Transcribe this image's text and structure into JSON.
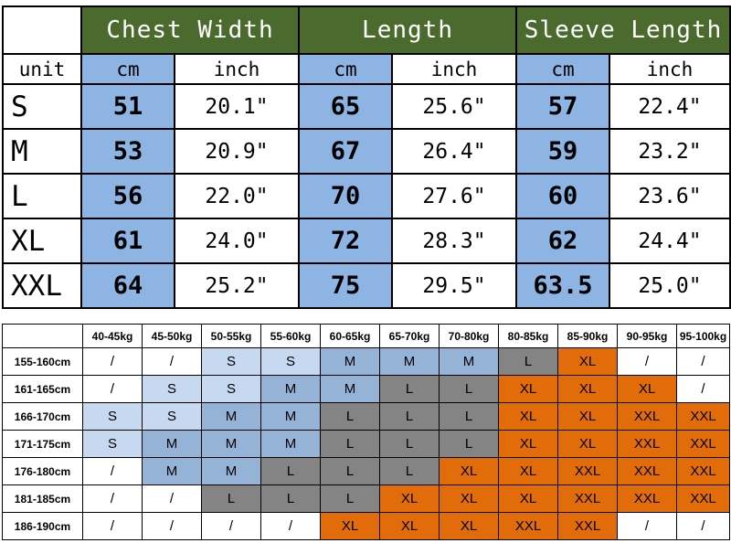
{
  "colors": {
    "header_green": "#4a6b2d",
    "cm_blue": "#8db4e2",
    "cell_S": "#c6d9f1",
    "cell_M": "#95b3d7",
    "cell_L": "#848484",
    "cell_XL": "#e26b0a",
    "cell_XXL": "#e26b0a",
    "cell_none": "#ffffff"
  },
  "chart_data": [
    {
      "type": "table",
      "name": "garment-size-measurements",
      "column_groups": [
        "Chest Width",
        "Length",
        "Sleeve Length"
      ],
      "unit_label": "unit",
      "sub_columns": [
        "cm",
        "inch",
        "cm",
        "inch",
        "cm",
        "inch"
      ],
      "rows": [
        {
          "size": "S",
          "values": [
            "51",
            "20.1\"",
            "65",
            "25.6\"",
            "57",
            "22.4\""
          ]
        },
        {
          "size": "M",
          "values": [
            "53",
            "20.9\"",
            "67",
            "26.4\"",
            "59",
            "23.2\""
          ]
        },
        {
          "size": "L",
          "values": [
            "56",
            "22.0\"",
            "70",
            "27.6\"",
            "60",
            "23.6\""
          ]
        },
        {
          "size": "XL",
          "values": [
            "61",
            "24.0\"",
            "72",
            "28.3\"",
            "62",
            "24.4\""
          ]
        },
        {
          "size": "XXL",
          "values": [
            "64",
            "25.2\"",
            "75",
            "29.5\"",
            "63.5",
            "25.0\""
          ]
        }
      ]
    },
    {
      "type": "table",
      "name": "height-weight-size-guide",
      "columns": [
        "40-45kg",
        "45-50kg",
        "50-55kg",
        "55-60kg",
        "60-65kg",
        "65-70kg",
        "70-80kg",
        "80-85kg",
        "85-90kg",
        "90-95kg",
        "95-100kg"
      ],
      "rows": [
        {
          "height": "155-160cm",
          "cells": [
            "/",
            "/",
            "S",
            "S",
            "M",
            "M",
            "M",
            "L",
            "XL",
            "/",
            "/"
          ]
        },
        {
          "height": "161-165cm",
          "cells": [
            "/",
            "S",
            "S",
            "M",
            "M",
            "L",
            "L",
            "XL",
            "XL",
            "XL",
            "/"
          ]
        },
        {
          "height": "166-170cm",
          "cells": [
            "S",
            "S",
            "M",
            "M",
            "L",
            "L",
            "L",
            "XL",
            "XL",
            "XXL",
            "XXL"
          ]
        },
        {
          "height": "171-175cm",
          "cells": [
            "S",
            "M",
            "M",
            "M",
            "L",
            "L",
            "L",
            "XL",
            "XL",
            "XXL",
            "XXL"
          ]
        },
        {
          "height": "176-180cm",
          "cells": [
            "/",
            "M",
            "M",
            "L",
            "L",
            "L",
            "XL",
            "XL",
            "XXL",
            "XXL",
            "XXL"
          ]
        },
        {
          "height": "181-185cm",
          "cells": [
            "/",
            "/",
            "L",
            "L",
            "L",
            "XL",
            "XL",
            "XL",
            "XXL",
            "XXL",
            "XXL"
          ]
        },
        {
          "height": "186-190cm",
          "cells": [
            "/",
            "/",
            "/",
            "/",
            "XL",
            "XL",
            "XL",
            "XXL",
            "XXL",
            "/",
            "/"
          ]
        }
      ]
    }
  ]
}
